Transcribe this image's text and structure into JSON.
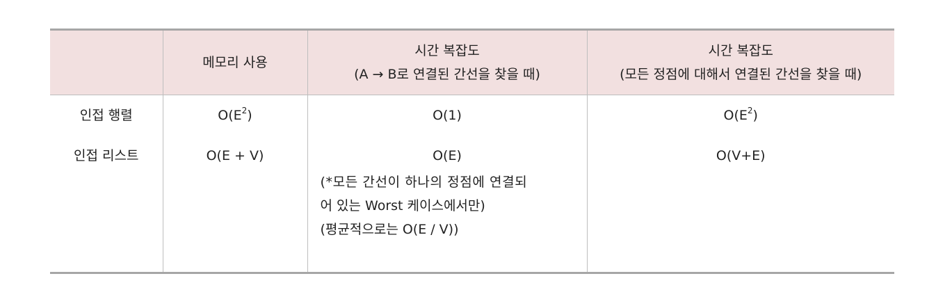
{
  "header": {
    "col1": "",
    "col2": "메모리 사용",
    "col3_line1": "시간 복잡도",
    "col3_line2": "(A → B로 연결된 간선을 찾을 때)",
    "col4_line1": "시간 복잡도",
    "col4_line2": "(모든 정점에 대해서 연결된 간선을 찾을 때)"
  },
  "rows": [
    {
      "name": "인접 행렬",
      "memory_base": "O(E",
      "memory_sup": "2",
      "memory_end": ")",
      "time_single": "O(1)",
      "time_all_base": "O(E",
      "time_all_sup": "2",
      "time_all_end": ")"
    },
    {
      "name": "인접 리스트",
      "memory": "O(E + V)",
      "time_single": "O(E)",
      "note_line1": "(*모든 간선이 하나의 정점에 연결되",
      "note_line2": "어 있는 Worst 케이스에서만)",
      "note_line3": "(평균적으로는 O(E / V))",
      "time_all": "O(V+E)"
    }
  ]
}
